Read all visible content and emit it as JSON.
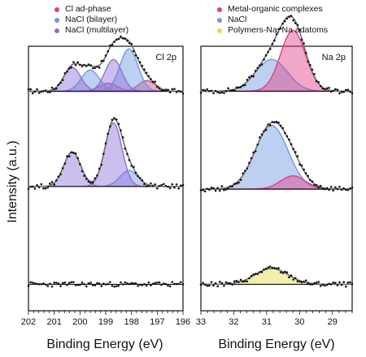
{
  "ylabel": "Intensity (a.u.)",
  "xlabel": "Binding Energy (eV)",
  "colors": {
    "pink": "#e03d86",
    "blue": "#6f97e0",
    "purple": "#8f6fd8",
    "yellow": "#e6d94a",
    "envelope": "#707070",
    "points": "#111111"
  },
  "chart_data": [
    {
      "type": "line",
      "panel_label": "Cl 2p",
      "xlabel": "Binding Energy (eV)",
      "ylabel": "Intensity (a.u.)",
      "x_reversed": true,
      "xlim": [
        202,
        196
      ],
      "x_tick_labels": [
        "202",
        "201",
        "200",
        "199",
        "198",
        "197",
        "196"
      ],
      "legend": [
        {
          "label": "Cl ad-phase",
          "color": "pink"
        },
        {
          "label": "NaCl (bilayer)",
          "color": "blue"
        },
        {
          "label": "NaCl (multilayer)",
          "color": "purple"
        }
      ],
      "traces": [
        {
          "baseline": 0.83,
          "components": [
            {
              "series": "Cl ad-phase",
              "color": "pink",
              "center": 198.9,
              "width": 0.35,
              "height": 0.03
            },
            {
              "series": "Cl ad-phase",
              "color": "pink",
              "center": 197.4,
              "width": 0.33,
              "height": 0.04
            },
            {
              "series": "NaCl (bilayer)",
              "color": "blue",
              "center": 199.6,
              "width": 0.35,
              "height": 0.08
            },
            {
              "series": "NaCl (bilayer)",
              "color": "blue",
              "center": 198.1,
              "width": 0.35,
              "height": 0.16
            },
            {
              "series": "NaCl (multilayer)",
              "color": "purple",
              "center": 200.3,
              "width": 0.33,
              "height": 0.09
            },
            {
              "series": "NaCl (multilayer)",
              "color": "purple",
              "center": 198.7,
              "width": 0.33,
              "height": 0.12
            }
          ]
        },
        {
          "baseline": 0.47,
          "components": [
            {
              "series": "NaCl (bilayer)",
              "color": "blue",
              "center": 198.1,
              "width": 0.35,
              "height": 0.06
            },
            {
              "series": "NaCl (multilayer)",
              "color": "purple",
              "center": 200.3,
              "width": 0.33,
              "height": 0.13
            },
            {
              "series": "NaCl (multilayer)",
              "color": "purple",
              "center": 198.7,
              "width": 0.33,
              "height": 0.24
            }
          ]
        },
        {
          "baseline": 0.1,
          "components": []
        }
      ]
    },
    {
      "type": "line",
      "panel_label": "Na 2p",
      "xlabel": "Binding Energy (eV)",
      "ylabel": "",
      "x_reversed": true,
      "xlim": [
        33,
        28.4
      ],
      "x_tick_labels": [
        "33",
        "32",
        "31",
        "30",
        "29"
      ],
      "legend": [
        {
          "label": "Metal-organic complexes",
          "color": "pink"
        },
        {
          "label": "NaCl",
          "color": "blue"
        },
        {
          "label": "Polymers-Na, Na adatoms",
          "color": "yellow"
        }
      ],
      "traces": [
        {
          "baseline": 0.83,
          "components": [
            {
              "series": "NaCl",
              "color": "blue",
              "center": 30.85,
              "width": 0.48,
              "height": 0.12
            },
            {
              "series": "Metal-organic complexes",
              "color": "pink",
              "center": 30.2,
              "width": 0.38,
              "height": 0.23
            }
          ]
        },
        {
          "baseline": 0.46,
          "components": [
            {
              "series": "NaCl",
              "color": "blue",
              "center": 30.85,
              "width": 0.5,
              "height": 0.24
            },
            {
              "series": "Metal-organic complexes",
              "color": "pink",
              "center": 30.2,
              "width": 0.38,
              "height": 0.05
            }
          ]
        },
        {
          "baseline": 0.1,
          "components": [
            {
              "series": "Polymers-Na, Na adatoms",
              "color": "yellow",
              "center": 30.85,
              "width": 0.5,
              "height": 0.06
            }
          ]
        }
      ]
    }
  ]
}
